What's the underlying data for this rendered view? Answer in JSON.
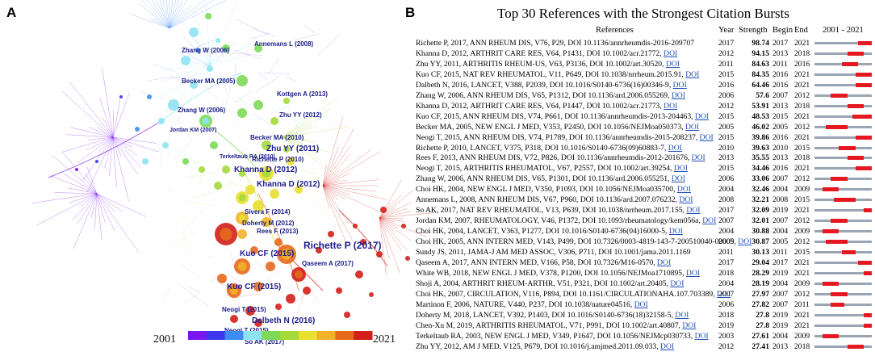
{
  "panel_a": {
    "label": "A",
    "year_start": "2001",
    "year_end": "2021",
    "colors": [
      "#7a16f0",
      "#3e37f0",
      "#3c8cf2",
      "#8fe3f1",
      "#7dd957",
      "#a3d93b",
      "#e8df2f",
      "#f2b228",
      "#e76a1c",
      "#d11f1a"
    ],
    "nodes": [
      {
        "name": "Annemans L (2008)"
      },
      {
        "name": "Zhang W (2006)"
      },
      {
        "name": "Becker MA (2005)"
      },
      {
        "name": "Zhang W (2006)"
      },
      {
        "name": "Jordan KM (2007)"
      },
      {
        "name": "Kottgen A (2013)"
      },
      {
        "name": "Zhu YY (2012)"
      },
      {
        "name": "Becker MA (2010)"
      },
      {
        "name": "Zhu YY (2011)"
      },
      {
        "name": "Terkeltaub RA (2010)"
      },
      {
        "name": "Richette P (2010)"
      },
      {
        "name": "Khanna D (2012)"
      },
      {
        "name": "Khanna D (2012)"
      },
      {
        "name": "Sivera F (2014)"
      },
      {
        "name": "Doherty M (2012)"
      },
      {
        "name": "Rees F (2013)"
      },
      {
        "name": "Richette P (2017)"
      },
      {
        "name": "Kuo CF (2015)"
      },
      {
        "name": "Qaseem A (2017)"
      },
      {
        "name": "Kuo CF (2015)"
      },
      {
        "name": "Neogi T (2015)"
      },
      {
        "name": "Dalbeth N (2016)"
      },
      {
        "name": "Neogi T (2015)"
      },
      {
        "name": "So AK (2017)"
      }
    ]
  },
  "chart_data": {
    "type": "table",
    "panel_label": "B",
    "title": "Top 30 References with the Strongest Citation Bursts",
    "headers": {
      "references": "References",
      "year": "Year",
      "strength": "Strength",
      "begin": "Begin",
      "end": "End",
      "range": "2001 - 2021"
    },
    "range": [
      2001,
      2021
    ],
    "rows": [
      {
        "ref": "Richette P, 2017, ANN RHEUM DIS, V76, P29, DOI 10.1136/annrheumdis-2016-209707",
        "doi": "",
        "year": 2017,
        "strength": "98.74",
        "begin": 2017,
        "end": 2021
      },
      {
        "ref": "Khanna D, 2012, ARTHRIT CARE RES, V64, P1431, DOI 10.1002/acr.21772, ",
        "doi": "DOI",
        "year": 2012,
        "strength": "94.15",
        "begin": 2013,
        "end": 2018
      },
      {
        "ref": "Zhu YY, 2011, ARTHRITIS RHEUM-US, V63, P3136, DOI 10.1002/art.30520, ",
        "doi": "DOI",
        "year": 2011,
        "strength": "84.63",
        "begin": 2011,
        "end": 2016
      },
      {
        "ref": "Kuo CF, 2015, NAT REV RHEUMATOL, V11, P649, DOI 10.1038/nrrheum.2015.91, ",
        "doi": "DOI",
        "year": 2015,
        "strength": "84.35",
        "begin": 2016,
        "end": 2021
      },
      {
        "ref": "Dalbeth N, 2016, LANCET, V388, P2039, DOI 10.1016/S0140-6736(16)00346-9, ",
        "doi": "DOI",
        "year": 2016,
        "strength": "64.46",
        "begin": 2016,
        "end": 2021
      },
      {
        "ref": "Zhang W, 2006, ANN RHEUM DIS, V65, P1312, DOI 10.1136/ard.2006.055269, ",
        "doi": "DOI",
        "year": 2006,
        "strength": "57.6",
        "begin": 2007,
        "end": 2012
      },
      {
        "ref": "Khanna D, 2012, ARTHRIT CARE RES, V64, P1447, DOI 10.1002/acr.21773, ",
        "doi": "DOI",
        "year": 2012,
        "strength": "53.91",
        "begin": 2013,
        "end": 2018
      },
      {
        "ref": "Kuo CF, 2015, ANN RHEUM DIS, V74, P661, DOI 10.1136/annrheumdis-2013-204463, ",
        "doi": "DOI",
        "year": 2015,
        "strength": "48.53",
        "begin": 2015,
        "end": 2021
      },
      {
        "ref": "Becker MA, 2005, NEW ENGL J MED, V353, P2450, DOI 10.1056/NEJMoa050373, ",
        "doi": "DOI",
        "year": 2005,
        "strength": "46.02",
        "begin": 2005,
        "end": 2012
      },
      {
        "ref": "Neogi T, 2015, ANN RHEUM DIS, V74, P1789, DOI 10.1136/annrheumdis-2015-208237, ",
        "doi": "DOI",
        "year": 2015,
        "strength": "39.86",
        "begin": 2016,
        "end": 2021
      },
      {
        "ref": "Richette P, 2010, LANCET, V375, P318, DOI 10.1016/S0140-6736(09)60883-7, ",
        "doi": "DOI",
        "year": 2010,
        "strength": "39.63",
        "begin": 2010,
        "end": 2015
      },
      {
        "ref": "Rees F, 2013, ANN RHEUM DIS, V72, P826, DOI 10.1136/annrheumdis-2012-201676, ",
        "doi": "DOI",
        "year": 2013,
        "strength": "35.55",
        "begin": 2013,
        "end": 2018
      },
      {
        "ref": "Neogi T, 2015, ARTHRITIS RHEUMATOL, V67, P2557, DOI 10.1002/art.39254, ",
        "doi": "DOI",
        "year": 2015,
        "strength": "34.46",
        "begin": 2016,
        "end": 2021
      },
      {
        "ref": "Zhang W, 2006, ANN RHEUM DIS, V65, P1301, DOI 10.1136/ard.2006.055251, ",
        "doi": "DOI",
        "year": 2006,
        "strength": "33.06",
        "begin": 2007,
        "end": 2012
      },
      {
        "ref": "Choi HK, 2004, NEW ENGL J MED, V350, P1093, DOI 10.1056/NEJMoa035700, ",
        "doi": "DOI",
        "year": 2004,
        "strength": "32.46",
        "begin": 2004,
        "end": 2009
      },
      {
        "ref": "Annemans L, 2008, ANN RHEUM DIS, V67, P960, DOI 10.1136/ard.2007.076232, ",
        "doi": "DOI",
        "year": 2008,
        "strength": "32.21",
        "begin": 2008,
        "end": 2015
      },
      {
        "ref": "So AK, 2017, NAT REV RHEUMATOL, V13, P639, DOI 10.1038/nrrheum.2017.155, ",
        "doi": "DOI",
        "year": 2017,
        "strength": "32.09",
        "begin": 2019,
        "end": 2021
      },
      {
        "ref": "Jordan KM, 2007, RHEUMATOLOGY, V46, P1372, DOI 10.1093/rheumatology/kem056a, ",
        "doi": "DOI",
        "year": 2007,
        "strength": "32.01",
        "begin": 2007,
        "end": 2012
      },
      {
        "ref": "Choi HK, 2004, LANCET, V363, P1277, DOI 10.1016/S0140-6736(04)16000-5, ",
        "doi": "DOI",
        "year": 2004,
        "strength": "30.88",
        "begin": 2004,
        "end": 2009
      },
      {
        "ref": "Choi HK, 2005, ANN INTERN MED, V143, P499, DOI 10.7326/0003-4819-143-7-200510040-00009, ",
        "doi": "DOI",
        "year": 2005,
        "strength": "30.87",
        "begin": 2005,
        "end": 2012
      },
      {
        "ref": "Sundy JS, 2011, JAMA-J AM MED ASSOC, V306, P711, DOI 10.1001/jama.2011.1169",
        "doi": "",
        "year": 2011,
        "strength": "30.13",
        "begin": 2011,
        "end": 2015
      },
      {
        "ref": "Qaseem A, 2017, ANN INTERN MED, V166, P58, DOI 10.7326/M16-0570, ",
        "doi": "DOI",
        "year": 2017,
        "strength": "29.04",
        "begin": 2017,
        "end": 2021
      },
      {
        "ref": "White WB, 2018, NEW ENGL J MED, V378, P1200, DOI 10.1056/NEJMoa1710895, ",
        "doi": "DOI",
        "year": 2018,
        "strength": "28.29",
        "begin": 2019,
        "end": 2021
      },
      {
        "ref": "Shoji A, 2004, ARTHRIT RHEUM-ARTHR, V51, P321, DOI 10.1002/art.20405, ",
        "doi": "DOI",
        "year": 2004,
        "strength": "28.19",
        "begin": 2004,
        "end": 2009
      },
      {
        "ref": "Choi HK, 2007, CIRCULATION, V116, P894, DOI 10.1161/CIRCULATIONAHA.107.703389, ",
        "doi": "DOI",
        "year": 2007,
        "strength": "27.97",
        "begin": 2007,
        "end": 2012
      },
      {
        "ref": "Martinon F, 2006, NATURE, V440, P237, DOI 10.1038/nature04516, ",
        "doi": "DOI",
        "year": 2006,
        "strength": "27.82",
        "begin": 2007,
        "end": 2011
      },
      {
        "ref": "Doherty M, 2018, LANCET, V392, P1403, DOI 10.1016/S0140-6736(18)32158-5, ",
        "doi": "DOI",
        "year": 2018,
        "strength": "27.8",
        "begin": 2019,
        "end": 2021
      },
      {
        "ref": "Chen-Xu M, 2019, ARTHRITIS RHEUMATOL, V71, P991, DOI 10.1002/art.40807, ",
        "doi": "DOI",
        "year": 2019,
        "strength": "27.8",
        "begin": 2019,
        "end": 2021
      },
      {
        "ref": "Terkeltaub RA, 2003, NEW ENGL J MED, V349, P1647, DOI 10.1056/NEJMcp030733, ",
        "doi": "DOI",
        "year": 2003,
        "strength": "27.61",
        "begin": 2004,
        "end": 2009
      },
      {
        "ref": "Zhu YY, 2012, AM J MED, V125, P679, DOI 10.1016/j.amjmed.2011.09.033, ",
        "doi": "DOI",
        "year": 2012,
        "strength": "27.41",
        "begin": 2013,
        "end": 2018
      }
    ]
  }
}
